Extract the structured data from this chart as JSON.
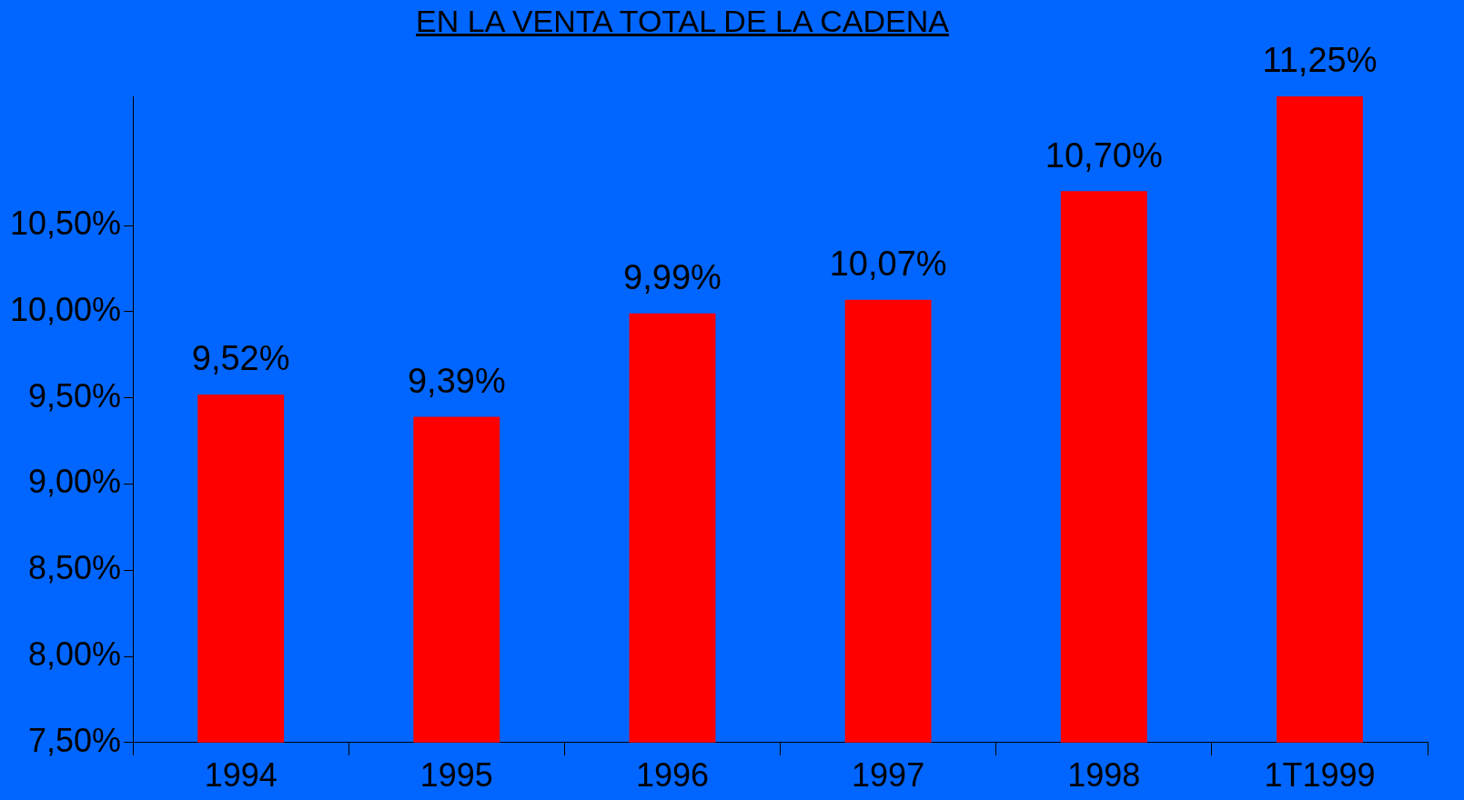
{
  "chart_data": {
    "type": "bar",
    "title": "EN LA VENTA TOTAL DE LA CADENA",
    "categories": [
      "1994",
      "1995",
      "1996",
      "1997",
      "1998",
      "1T1999"
    ],
    "values": [
      9.52,
      9.39,
      9.99,
      10.07,
      10.7,
      11.25
    ],
    "value_labels": [
      "9,52%",
      "9,39%",
      "9,99%",
      "10,07%",
      "10,70%",
      "11,25%"
    ],
    "color": "#ff0000",
    "ylim": [
      7.5,
      11.25
    ],
    "yticks": [
      {
        "value": 7.5,
        "label": "7,50%"
      },
      {
        "value": 8,
        "label": "8,00%"
      },
      {
        "value": 8.5,
        "label": "8,50%"
      },
      {
        "value": 9,
        "label": "9,00%"
      },
      {
        "value": 9.5,
        "label": "9,50%"
      },
      {
        "value": 10,
        "label": "10,00%"
      },
      {
        "value": 10.5,
        "label": "10,50%"
      }
    ]
  }
}
